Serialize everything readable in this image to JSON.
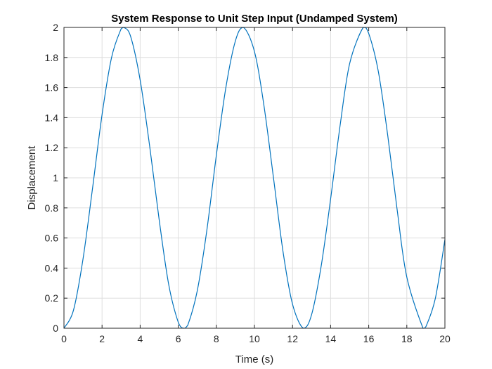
{
  "chart_data": {
    "type": "line",
    "title": "System Response to Unit Step Input (Undamped System)",
    "xlabel": "Time (s)",
    "ylabel": "Displacement",
    "xlim": [
      0,
      20
    ],
    "ylim": [
      0,
      2
    ],
    "xticks": [
      "0",
      "2",
      "4",
      "6",
      "8",
      "10",
      "12",
      "14",
      "16",
      "18",
      "20"
    ],
    "yticks": [
      "0",
      "0.2",
      "0.4",
      "0.6",
      "0.8",
      "1",
      "1.2",
      "1.4",
      "1.6",
      "1.8",
      "2"
    ],
    "grid": true,
    "series": [
      {
        "color": "#0072BD",
        "x": [
          0,
          0.5,
          1,
          1.5,
          2,
          2.5,
          3,
          3.14,
          3.5,
          4,
          4.5,
          5,
          5.5,
          6,
          6.28,
          6.5,
          7,
          7.5,
          8,
          8.5,
          9,
          9.42,
          10,
          10.5,
          11,
          11.5,
          12,
          12.57,
          13,
          13.5,
          14,
          14.5,
          15,
          15.71,
          16,
          16.5,
          17,
          17.5,
          18,
          18.85,
          19,
          19.5,
          20
        ],
        "y": [
          0,
          0.12,
          0.46,
          0.93,
          1.42,
          1.8,
          1.99,
          2.0,
          1.94,
          1.65,
          1.21,
          0.72,
          0.29,
          0.04,
          0,
          0.02,
          0.25,
          0.65,
          1.15,
          1.6,
          1.91,
          2.0,
          1.84,
          1.48,
          1.0,
          0.51,
          0.16,
          0,
          0.09,
          0.41,
          0.86,
          1.35,
          1.76,
          2.0,
          1.96,
          1.71,
          1.28,
          0.78,
          0.34,
          0,
          0.01,
          0.2,
          0.59
        ]
      }
    ]
  }
}
